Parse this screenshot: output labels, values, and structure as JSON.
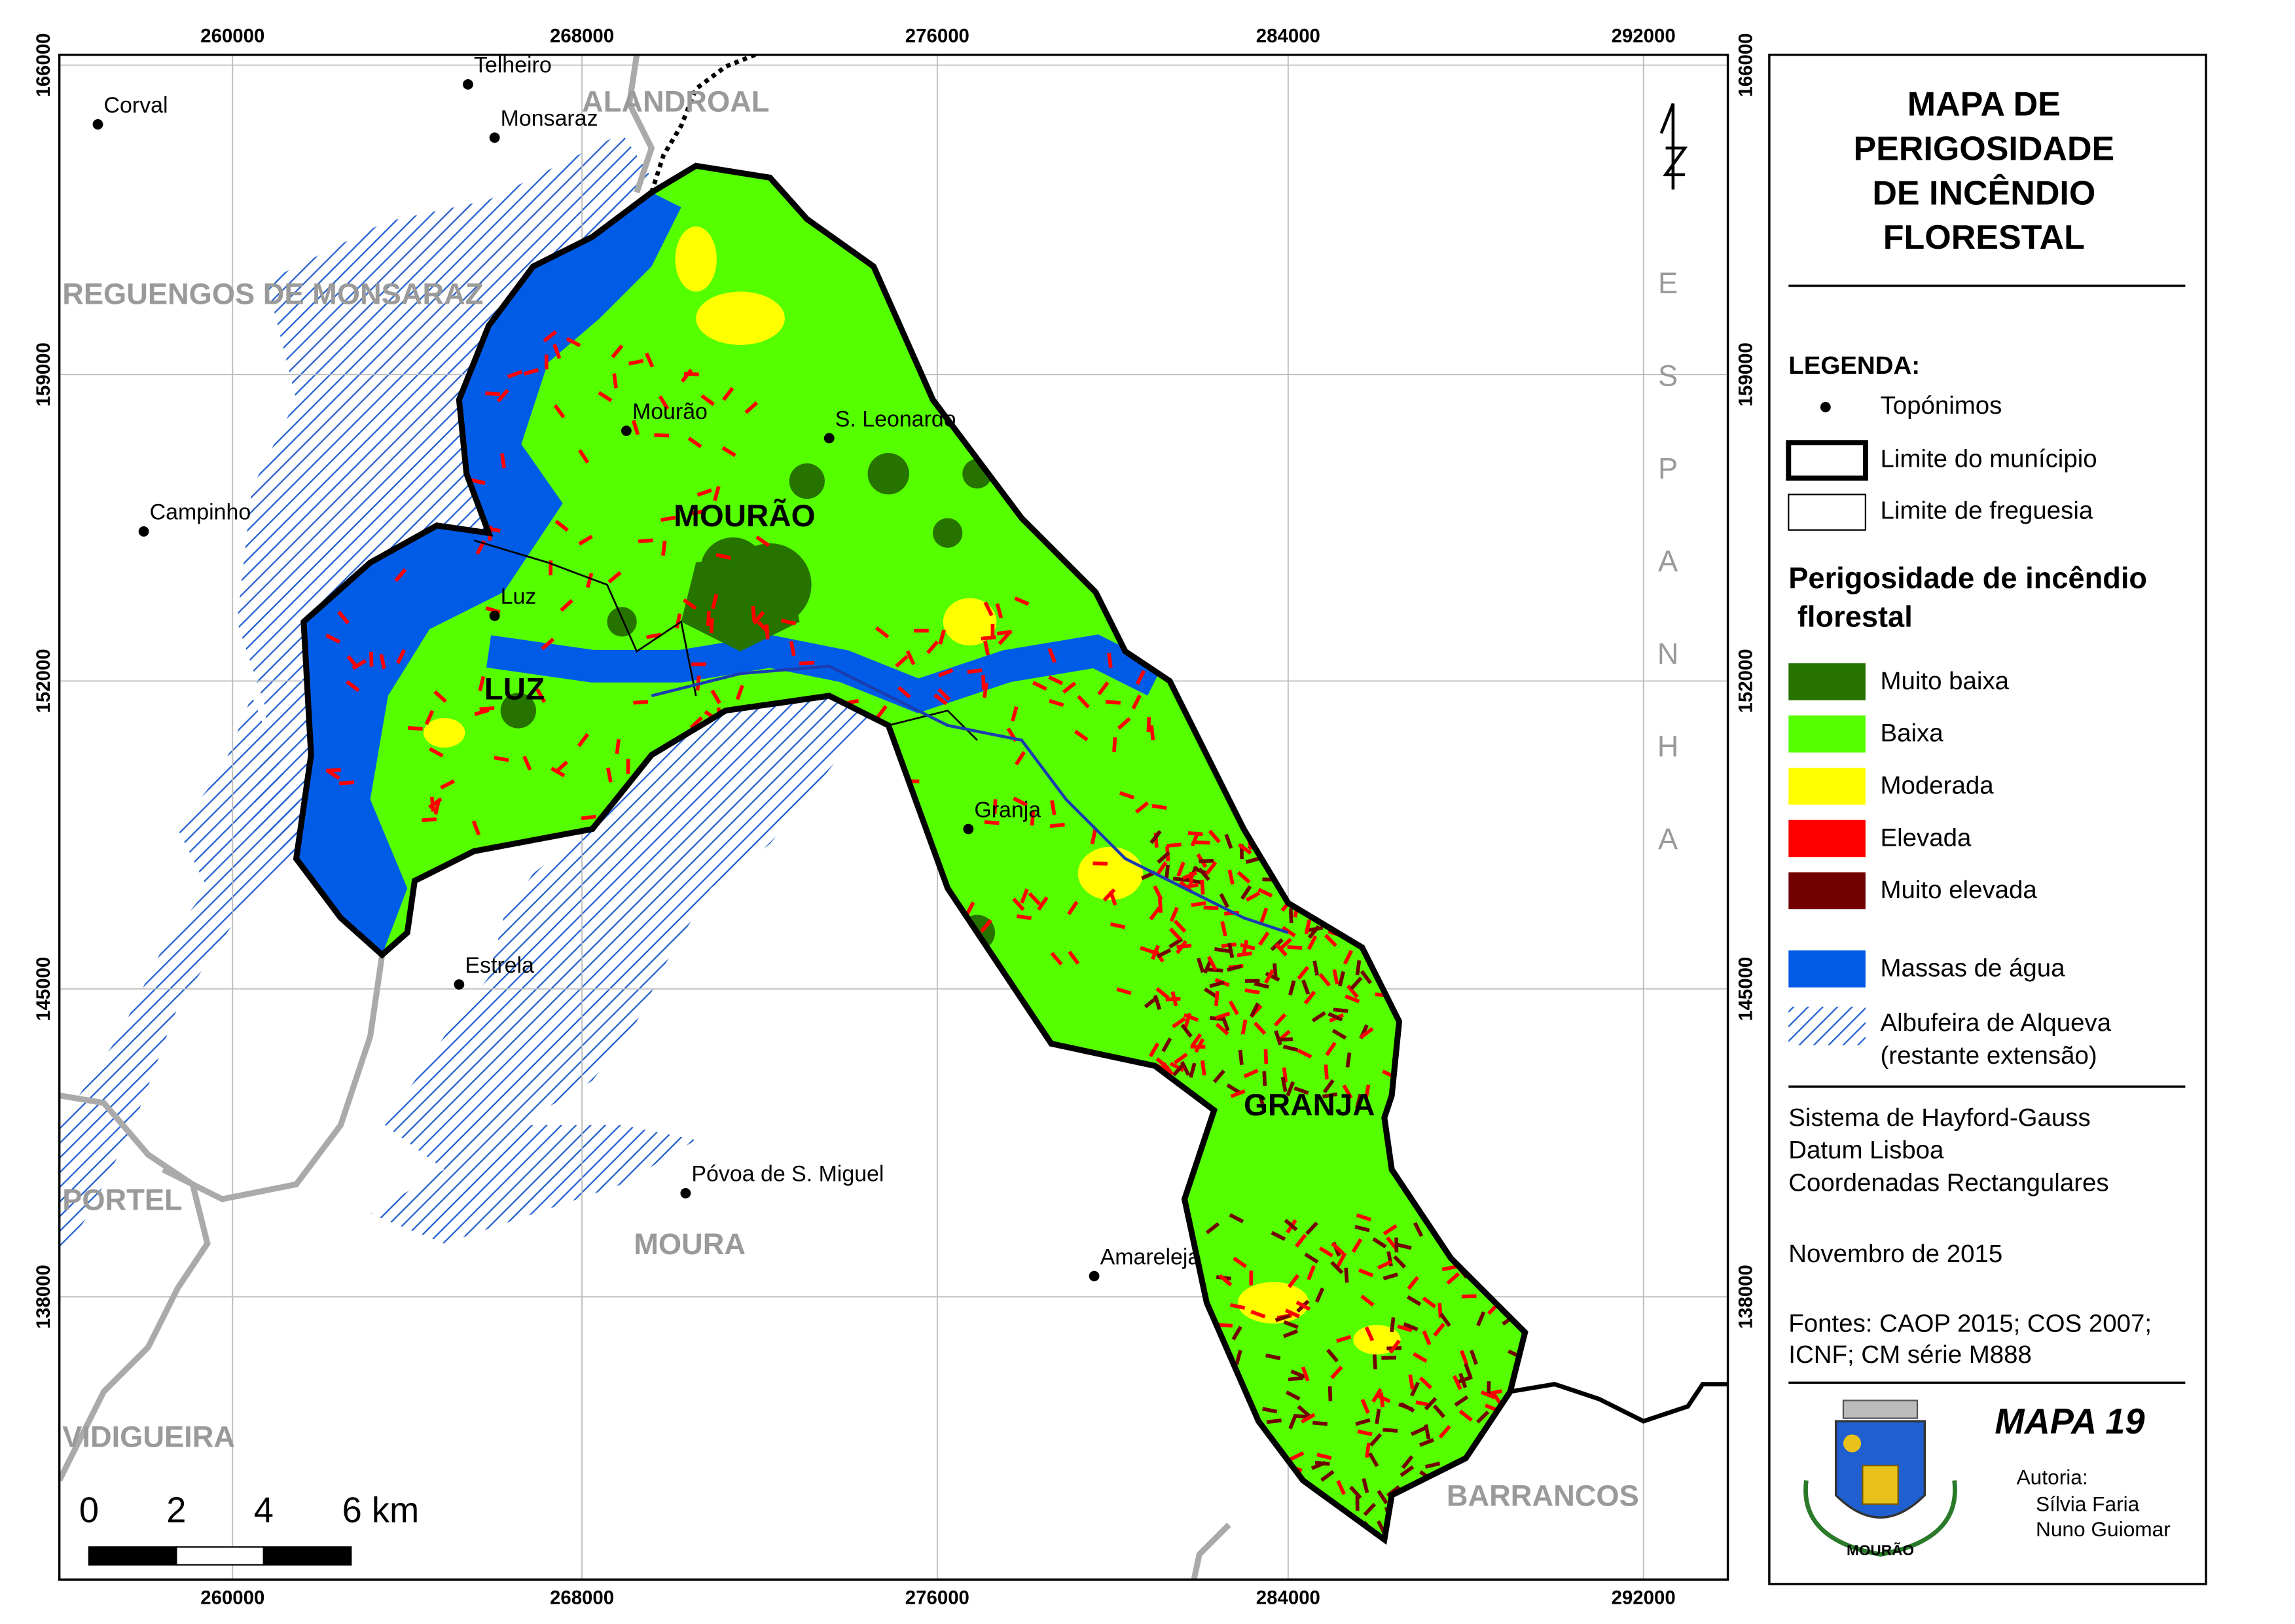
{
  "map": {
    "x_ticks": [
      "260000",
      "268000",
      "276000",
      "284000",
      "292000"
    ],
    "y_ticks": [
      "166000",
      "159000",
      "152000",
      "145000",
      "138000"
    ],
    "places": [
      "Corval",
      "Telheiro",
      "Monsaraz",
      "Campinho",
      "Mourão",
      "S. Leonardo",
      "Luz",
      "Granja",
      "Estrela",
      "Póvoa de S. Miguel",
      "Amareleja"
    ],
    "municipalities": [
      "ALANDROAL",
      "REGUENGOS DE MONSARAZ",
      "PORTEL",
      "MOURA",
      "VIDIGUEIRA",
      "BARRANCOS"
    ],
    "parishes": [
      "MOURÃO",
      "LUZ",
      "GRANJA"
    ],
    "country": "ESPANHA",
    "scale_labels": [
      "0",
      "2",
      "4",
      "6 km"
    ]
  },
  "panel": {
    "title": [
      "MAPA DE",
      "PERIGOSIDADE",
      "DE INCÊNDIO",
      "FLORESTAL"
    ],
    "legend_title": "LEGENDA:",
    "symbols": [
      "Topónimos",
      "Limite do munícipio",
      "Limite de freguesia"
    ],
    "hazard_title": [
      "Perigosidade de incêndio",
      "florestal"
    ],
    "hazard_classes": [
      {
        "label": "Muito baixa",
        "color": "#267300"
      },
      {
        "label": "Baixa",
        "color": "#55ff00"
      },
      {
        "label": "Moderada",
        "color": "#ffff00"
      },
      {
        "label": "Elevada",
        "color": "#ff0000"
      },
      {
        "label": "Muito elevada",
        "color": "#730000"
      }
    ],
    "water": {
      "label": "Massas de água",
      "color": "#005ce6"
    },
    "reservoir": [
      "Albufeira de Alqueva",
      "(restante extensão)"
    ],
    "projection": [
      "Sistema de Hayford-Gauss",
      "Datum Lisboa",
      "Coordenadas Rectangulares"
    ],
    "date": "Novembro de 2015",
    "sources": [
      "Fontes: CAOP 2015; COS 2007;",
      "ICNF; CM série M888"
    ],
    "map_number": "MAPA 19",
    "authorship": [
      "Autoria:",
      "Sílvia Faria",
      "Nuno Guiomar"
    ],
    "crest_label": "MOURÃO"
  }
}
